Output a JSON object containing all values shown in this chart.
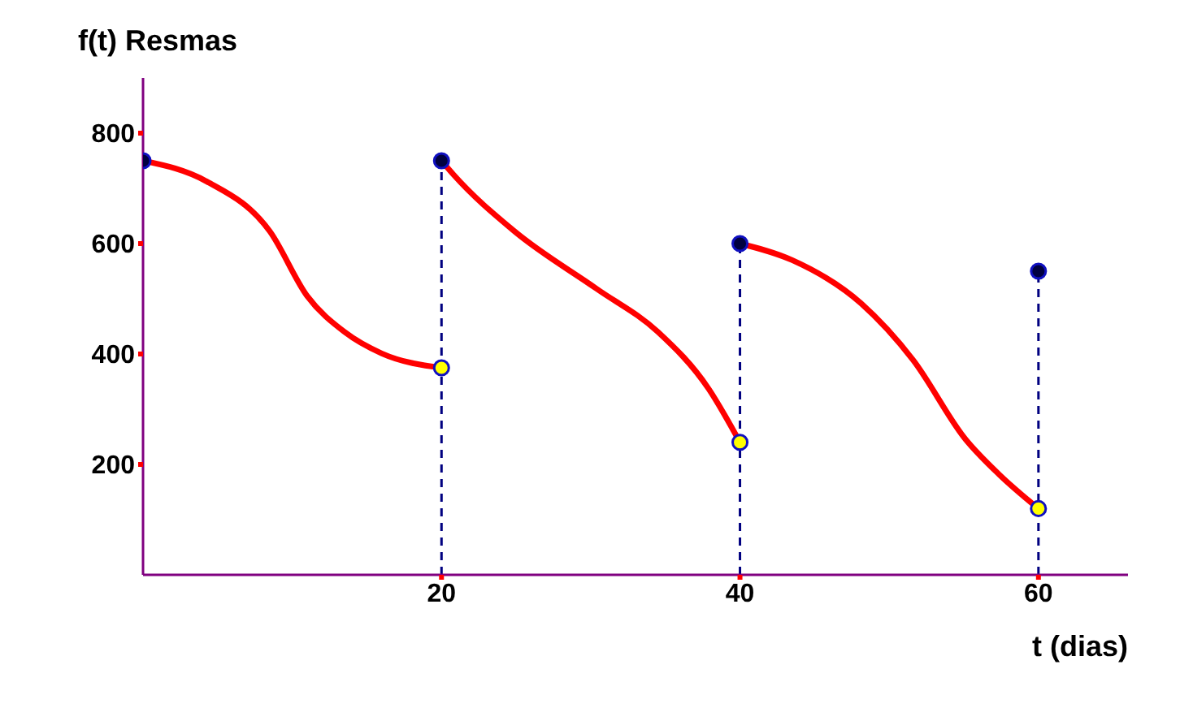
{
  "chart_data": {
    "type": "line",
    "xlabel": "t (dias)",
    "ylabel": "f(t) Resmas",
    "xlim": [
      0,
      66
    ],
    "ylim": [
      0,
      900
    ],
    "xticks": [
      20,
      40,
      60
    ],
    "yticks": [
      200,
      400,
      600,
      800
    ],
    "grid": false,
    "legend": false,
    "marker": "circle",
    "series": [
      {
        "color": "#ff0000",
        "marker": "none",
        "x": [
          0,
          4.3,
          8.5,
          11,
          13.5,
          16,
          20
        ],
        "values": [
          750,
          712,
          622,
          505,
          440,
          401,
          375
        ]
      },
      {
        "color": "#ff0000",
        "marker": "none",
        "x": [
          20,
          20.8,
          24.9,
          30.4,
          34.5,
          37.9,
          40
        ],
        "values": [
          750,
          725,
          622,
          518,
          440,
          337,
          240
        ]
      },
      {
        "color": "#ff0000",
        "marker": "none",
        "x": [
          40,
          43.5,
          48.1,
          51.6,
          55.1,
          57.4,
          60
        ],
        "values": [
          600,
          570,
          492,
          389,
          246,
          181,
          120
        ]
      },
      {
        "color": "#000080",
        "marker": "none",
        "line_style": "dashed",
        "x": [
          20,
          20
        ],
        "values": [
          0,
          750
        ]
      },
      {
        "color": "#000080",
        "marker": "none",
        "line_style": "dashed",
        "x": [
          40,
          40
        ],
        "values": [
          0,
          600
        ]
      },
      {
        "color": "#000080",
        "marker": "none",
        "line_style": "dashed",
        "x": [
          60,
          60
        ],
        "values": [
          0,
          550
        ]
      },
      {
        "type": "scatter",
        "color": "#000040",
        "x": [
          0,
          20,
          40,
          60
        ],
        "values": [
          750,
          750,
          600,
          550
        ]
      },
      {
        "type": "scatter",
        "color": "#ffff00",
        "x": [
          20,
          40,
          60
        ],
        "values": [
          375,
          240,
          120
        ]
      }
    ]
  }
}
